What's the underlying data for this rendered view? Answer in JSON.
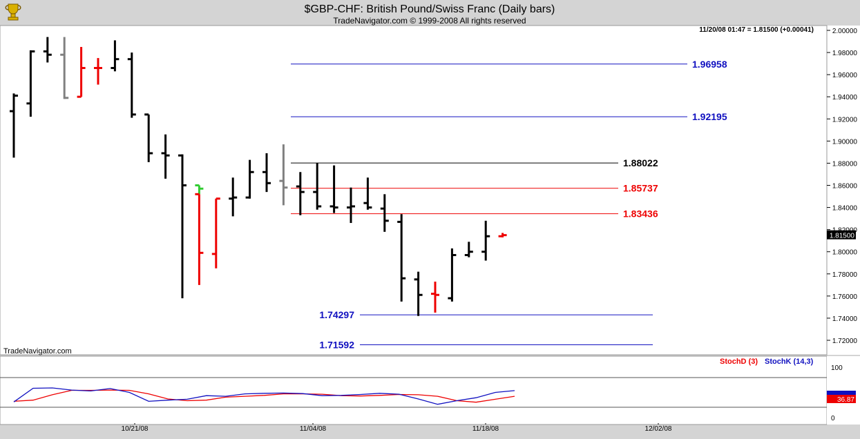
{
  "header": {
    "title": "$GBP-CHF:  British Pound/Swiss Franc  (Daily bars)",
    "subtitle": "TradeNavigator.com © 1999-2008 All rights reserved",
    "logo_icon": "trophy-logo-icon"
  },
  "quote_info": "11/20/08 01:47 = 1.81500 (+0.00041)",
  "watermark": "TradeNavigator.com",
  "colors": {
    "up": "#000000",
    "down": "#ee0000",
    "neutral": "#808080",
    "flat": "#33cc33",
    "fib_blue": "#1010c0",
    "fib_red": "#ee0000",
    "fib_black": "#000000",
    "stochD": "#ee0000",
    "stochK": "#1010c0",
    "price_tag_bg": "#000000",
    "stoch_tag_bg": "#ee0000"
  },
  "chart_data": [
    {
      "type": "ohlc",
      "y_axis_ticks": [
        "2.00000",
        "1.98000",
        "1.96000",
        "1.94000",
        "1.92000",
        "1.90000",
        "1.88000",
        "1.86000",
        "1.84000",
        "1.82000",
        "1.80000",
        "1.78000",
        "1.76000",
        "1.74000",
        "1.72000"
      ],
      "ylim": [
        1.71,
        2.002
      ],
      "x_ticks": [
        "10/21/08",
        "11/04/08",
        "11/18/08",
        "12/02/08"
      ],
      "last_price_label": "1.81500",
      "bars": [
        {
          "o": 1.927,
          "h": 1.943,
          "l": 1.885,
          "c": 1.941,
          "color": "up"
        },
        {
          "o": 1.934,
          "h": 1.982,
          "l": 1.922,
          "c": 1.981,
          "color": "up"
        },
        {
          "o": 1.981,
          "h": 1.994,
          "l": 1.971,
          "c": 1.978,
          "color": "up"
        },
        {
          "o": 1.978,
          "h": 1.994,
          "l": 1.938,
          "c": 1.939,
          "color": "neutral"
        },
        {
          "o": 1.94,
          "h": 1.985,
          "l": 1.94,
          "c": 1.966,
          "color": "down"
        },
        {
          "o": 1.966,
          "h": 1.975,
          "l": 1.951,
          "c": 1.966,
          "color": "down"
        },
        {
          "o": 1.966,
          "h": 1.991,
          "l": 1.963,
          "c": 1.974,
          "color": "up"
        },
        {
          "o": 1.974,
          "h": 1.98,
          "l": 1.921,
          "c": 1.924,
          "color": "up"
        },
        {
          "o": 1.924,
          "h": 1.924,
          "l": 1.881,
          "c": 1.889,
          "color": "up"
        },
        {
          "o": 1.889,
          "h": 1.906,
          "l": 1.866,
          "c": 1.887,
          "color": "up"
        },
        {
          "o": 1.887,
          "h": 1.888,
          "l": 1.758,
          "c": 1.86,
          "color": "up"
        },
        {
          "o": 1.86,
          "h": 1.86,
          "l": 1.852,
          "c": 1.857,
          "color": "flat"
        },
        {
          "o": 1.852,
          "h": 1.852,
          "l": 1.77,
          "c": 1.799,
          "color": "down"
        },
        {
          "o": 1.798,
          "h": 1.848,
          "l": 1.785,
          "c": 1.848,
          "color": "down"
        },
        {
          "o": 1.848,
          "h": 1.867,
          "l": 1.832,
          "c": 1.849,
          "color": "up"
        },
        {
          "o": 1.849,
          "h": 1.883,
          "l": 1.848,
          "c": 1.872,
          "color": "up"
        },
        {
          "o": 1.872,
          "h": 1.889,
          "l": 1.854,
          "c": 1.862,
          "color": "up"
        },
        {
          "o": 1.864,
          "h": 1.897,
          "l": 1.842,
          "c": 1.858,
          "color": "neutral"
        },
        {
          "o": 1.859,
          "h": 1.872,
          "l": 1.833,
          "c": 1.854,
          "color": "up"
        },
        {
          "o": 1.854,
          "h": 1.88,
          "l": 1.838,
          "c": 1.841,
          "color": "up"
        },
        {
          "o": 1.841,
          "h": 1.878,
          "l": 1.835,
          "c": 1.84,
          "color": "up"
        },
        {
          "o": 1.84,
          "h": 1.858,
          "l": 1.826,
          "c": 1.841,
          "color": "up"
        },
        {
          "o": 1.844,
          "h": 1.867,
          "l": 1.838,
          "c": 1.84,
          "color": "up"
        },
        {
          "o": 1.839,
          "h": 1.852,
          "l": 1.818,
          "c": 1.828,
          "color": "up"
        },
        {
          "o": 1.827,
          "h": 1.834,
          "l": 1.755,
          "c": 1.776,
          "color": "up"
        },
        {
          "o": 1.775,
          "h": 1.782,
          "l": 1.742,
          "c": 1.761,
          "color": "up"
        },
        {
          "o": 1.762,
          "h": 1.773,
          "l": 1.745,
          "c": 1.761,
          "color": "down"
        },
        {
          "o": 1.758,
          "h": 1.803,
          "l": 1.755,
          "c": 1.797,
          "color": "up"
        },
        {
          "o": 1.797,
          "h": 1.809,
          "l": 1.795,
          "c": 1.8,
          "color": "up"
        },
        {
          "o": 1.8,
          "h": 1.828,
          "l": 1.792,
          "c": 1.814,
          "color": "up"
        },
        {
          "o": 1.814,
          "h": 1.817,
          "l": 1.813,
          "c": 1.815,
          "color": "down"
        }
      ],
      "bar_slots": [
        0,
        1,
        2,
        3,
        4,
        5,
        6,
        7,
        8,
        9,
        10,
        11,
        11,
        12,
        13,
        14,
        15,
        16,
        17,
        18,
        19,
        20,
        21,
        22,
        23,
        24,
        25,
        26,
        27,
        28,
        29
      ],
      "fib_levels": [
        {
          "label": "1.96958",
          "value": 1.96958,
          "color": "fib_blue",
          "span": "upper",
          "label_side": "right"
        },
        {
          "label": "1.92195",
          "value": 1.92195,
          "color": "fib_blue",
          "span": "upper",
          "label_side": "right"
        },
        {
          "label": "1.88022",
          "value": 1.88022,
          "color": "fib_black",
          "span": "short",
          "label_side": "right"
        },
        {
          "label": "1.85737",
          "value": 1.85737,
          "color": "fib_red",
          "span": "short",
          "label_side": "right"
        },
        {
          "label": "1.83436",
          "value": 1.83436,
          "color": "fib_red",
          "span": "short",
          "label_side": "right"
        },
        {
          "label": "1.74297",
          "value": 1.74297,
          "color": "fib_blue",
          "span": "lower",
          "label_side": "left"
        },
        {
          "label": "1.71592",
          "value": 1.71592,
          "color": "fib_blue",
          "span": "lower",
          "label_side": "left"
        }
      ]
    },
    {
      "type": "line",
      "legend": [
        "StochD (3)",
        "StochK (14,3)"
      ],
      "y_axis_ticks": [
        "100",
        "0"
      ],
      "ylim": [
        0,
        100
      ],
      "last_label": "36.87",
      "series": [
        {
          "name": "StochD (3)",
          "values": [
            20,
            24,
            42,
            57,
            57,
            58,
            57,
            45,
            28,
            22,
            24,
            34,
            37,
            40,
            45,
            45,
            44,
            39,
            38,
            40,
            43,
            42,
            37,
            22,
            17,
            27,
            37
          ]
        },
        {
          "name": "StochK (14,3)",
          "values": [
            18,
            64,
            65,
            58,
            55,
            63,
            50,
            20,
            24,
            27,
            39,
            37,
            45,
            47,
            48,
            46,
            39,
            40,
            43,
            47,
            44,
            28,
            10,
            22,
            32,
            50,
            56
          ]
        }
      ]
    }
  ]
}
